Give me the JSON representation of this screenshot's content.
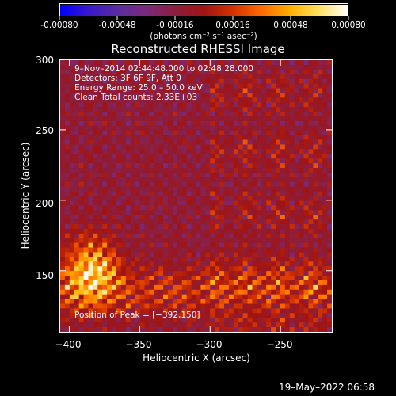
{
  "colorbar": {
    "ticks": [
      "-0.00080",
      "-0.00048",
      "-0.00016",
      "0.00016",
      "0.00048",
      "0.00080"
    ],
    "unit": "(photons cm⁻² s⁻¹ asec⁻²)",
    "range": [
      -0.0008,
      0.0008
    ],
    "colormap": [
      "#0000ff",
      "#3a18c8",
      "#5a2ca0",
      "#7a2a7a",
      "#8c1e3c",
      "#a01414",
      "#d23200",
      "#ff6a00",
      "#ffb000",
      "#ffe060",
      "#ffffff"
    ]
  },
  "chart_data": {
    "type": "heatmap",
    "title": "Reconstructed RHESSI Image",
    "xlabel": "Heliocentric X (arcsec)",
    "ylabel": "Heliocentric Y (arcsec)",
    "xlim": [
      -407,
      -213
    ],
    "ylim": [
      106,
      300
    ],
    "xticks": [
      "−400",
      "−350",
      "−300",
      "−250"
    ],
    "yticks": [
      "300",
      "250",
      "200",
      "150"
    ],
    "xtick_values": [
      -400,
      -350,
      -300,
      -250
    ],
    "ytick_values": [
      300,
      250,
      200,
      150
    ],
    "peak": [
      -392,
      150
    ],
    "annotations": {
      "time": "9–Nov–2014 02:44:48.000 to 02:48:28.000",
      "detectors": "Detectors: 3F 6F 9F, Att 0",
      "energy": "Energy Range: 25.0 – 50.0 keV",
      "method": "Clean     Total counts: 2.33E+03",
      "peak": "Position of Peak = [−392,150]"
    }
  },
  "footer": {
    "date": "19–May–2022 06:58"
  }
}
